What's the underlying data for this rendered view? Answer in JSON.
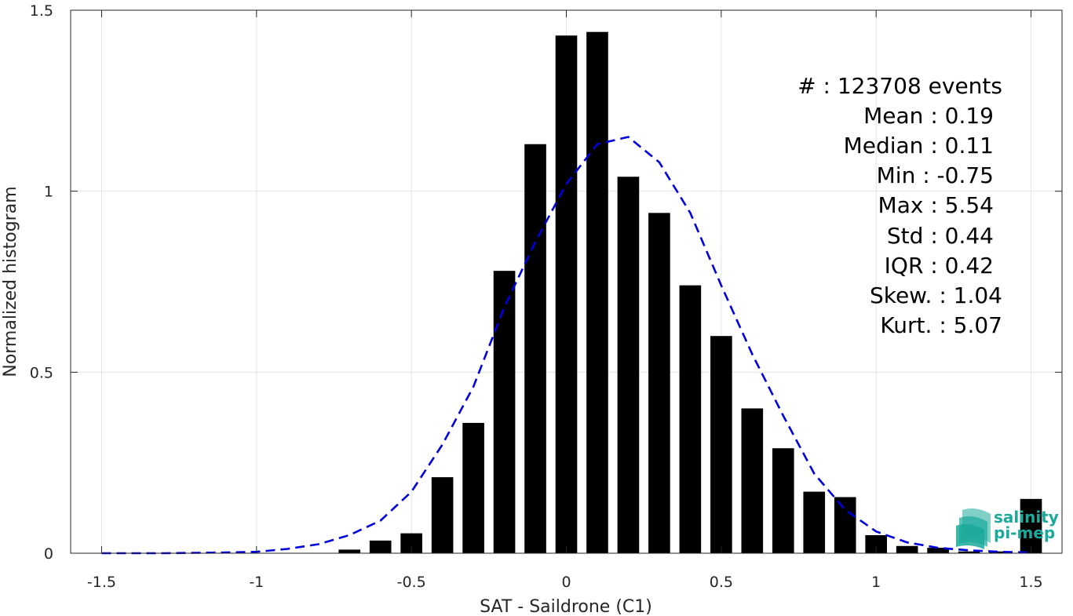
{
  "chart_data": {
    "type": "bar",
    "xlabel": "SAT - Saildrone (C1)",
    "ylabel": "Normalized histogram",
    "xlim": [
      -1.6,
      1.6
    ],
    "ylim": [
      0,
      1.5
    ],
    "xticks": [
      -1.5,
      -1,
      -0.5,
      0,
      0.5,
      1,
      1.5
    ],
    "xtick_labels": [
      "-1.5",
      "-1",
      "-0.5",
      "0",
      "0.5",
      "1",
      "1.5"
    ],
    "yticks": [
      0,
      0.5,
      1,
      1.5
    ],
    "ytick_labels": [
      "0",
      "0.5",
      "1",
      "1.5"
    ],
    "grid": true,
    "bar_color": "#000000",
    "bar_width": 0.07,
    "bars": {
      "x": [
        -0.7,
        -0.6,
        -0.5,
        -0.4,
        -0.3,
        -0.2,
        -0.1,
        0.0,
        0.1,
        0.2,
        0.3,
        0.4,
        0.5,
        0.6,
        0.7,
        0.8,
        0.9,
        1.0,
        1.1,
        1.2,
        1.3,
        1.4,
        1.5
      ],
      "values": [
        0.01,
        0.035,
        0.055,
        0.21,
        0.36,
        0.78,
        1.13,
        1.43,
        1.44,
        1.04,
        0.94,
        0.74,
        0.6,
        0.4,
        0.29,
        0.17,
        0.155,
        0.05,
        0.02,
        0.015,
        0.005,
        0.005,
        0.15
      ]
    },
    "fit_curve": {
      "color": "#0000dd",
      "style": "dashed",
      "x": [
        -1.5,
        -1.4,
        -1.3,
        -1.2,
        -1.1,
        -1.0,
        -0.9,
        -0.8,
        -0.7,
        -0.6,
        -0.5,
        -0.4,
        -0.3,
        -0.2,
        -0.1,
        0.0,
        0.1,
        0.2,
        0.3,
        0.4,
        0.5,
        0.6,
        0.7,
        0.8,
        0.9,
        1.0,
        1.1,
        1.2,
        1.3,
        1.4,
        1.5
      ],
      "y": [
        0.0,
        0.0,
        0.0,
        0.001,
        0.002,
        0.004,
        0.012,
        0.025,
        0.05,
        0.09,
        0.17,
        0.3,
        0.46,
        0.68,
        0.86,
        1.02,
        1.13,
        1.15,
        1.08,
        0.94,
        0.74,
        0.55,
        0.38,
        0.22,
        0.12,
        0.06,
        0.03,
        0.015,
        0.008,
        0.004,
        0.002
      ]
    }
  },
  "stats": [
    {
      "label": "#  : 123708 events"
    },
    {
      "label": "Mean : 0.19"
    },
    {
      "label": "Median : 0.11"
    },
    {
      "label": "Min : -0.75"
    },
    {
      "label": "Max : 5.54"
    },
    {
      "label": "Std : 0.44"
    },
    {
      "label": "IQR : 0.42"
    },
    {
      "label": "Skew. : 1.04"
    },
    {
      "label": "Kurt. : 5.07"
    }
  ],
  "logo": {
    "line1": "salinity",
    "line2": "pi-mep",
    "color": "#1aa99a"
  }
}
